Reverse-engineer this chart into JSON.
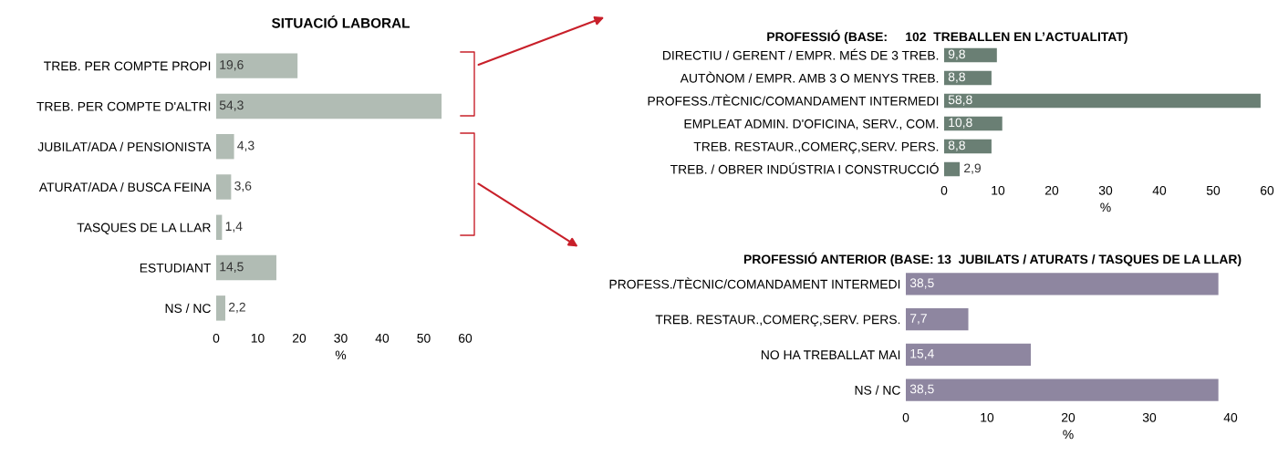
{
  "chart_data": [
    {
      "type": "bar",
      "orientation": "horizontal",
      "title": "SITUACIÓ LABORAL",
      "xlabel": "%",
      "categories": [
        "TREB. PER COMPTE PROPI",
        "TREB. PER COMPTE D'ALTRI",
        "JUBILAT/ADA / PENSIONISTA",
        "ATURAT/ADA / BUSCA FEINA",
        "TASQUES DE LA LLAR",
        "ESTUDIANT",
        "NS / NC"
      ],
      "values": [
        19.6,
        54.3,
        4.3,
        3.6,
        1.4,
        14.5,
        2.2
      ],
      "value_labels": [
        "19,6",
        "54,3",
        "4,3",
        "3,6",
        "1,4",
        "14,5",
        "2,2"
      ],
      "color": "#b1bcb4",
      "xlim": [
        0,
        60
      ],
      "xticks": [
        0,
        10,
        20,
        30,
        40,
        50,
        60
      ],
      "grid": false
    },
    {
      "type": "bar",
      "orientation": "horizontal",
      "title": "PROFESSIÓ (BASE:     102  TREBALLEN EN L’ACTUALITAT)",
      "xlabel": "%",
      "categories": [
        "DIRECTIU / GERENT / EMPR. MÉS DE 3 TREB.",
        "AUTÒNOM / EMPR. AMB 3 O MENYS TREB.",
        "PROFESS./TÈCNIC/COMANDAMENT INTERMEDI",
        "EMPLEAT ADMIN. D'OFICINA, SERV., COM.",
        "TREB. RESTAUR.,COMERÇ,SERV. PERS.",
        "TREB. / OBRER INDÚSTRIA I CONSTRUCCIÓ"
      ],
      "values": [
        9.8,
        8.8,
        58.8,
        10.8,
        8.8,
        2.9
      ],
      "value_labels": [
        "9,8",
        "8,8",
        "58,8",
        "10,8",
        "8,8",
        "2,9"
      ],
      "color": "#6a7f74",
      "xlim": [
        0,
        60
      ],
      "xticks": [
        0,
        10,
        20,
        30,
        40,
        50,
        60
      ],
      "grid": false
    },
    {
      "type": "bar",
      "orientation": "horizontal",
      "title": "PROFESSIÓ ANTERIOR (BASE: 13  JUBILATS / ATURATS / TASQUES DE LA LLAR)",
      "xlabel": "%",
      "categories": [
        "PROFESS./TÈCNIC/COMANDAMENT INTERMEDI",
        "TREB. RESTAUR.,COMERÇ,SERV. PERS.",
        "NO HA TREBALLAT MAI",
        "NS / NC"
      ],
      "values": [
        38.5,
        7.7,
        15.4,
        38.5
      ],
      "value_labels": [
        "38,5",
        "7,7",
        "15,4",
        "38,5"
      ],
      "color": "#8e86a0",
      "xlim": [
        0,
        40
      ],
      "xticks": [
        0,
        10,
        20,
        30,
        40
      ],
      "grid": false
    }
  ]
}
